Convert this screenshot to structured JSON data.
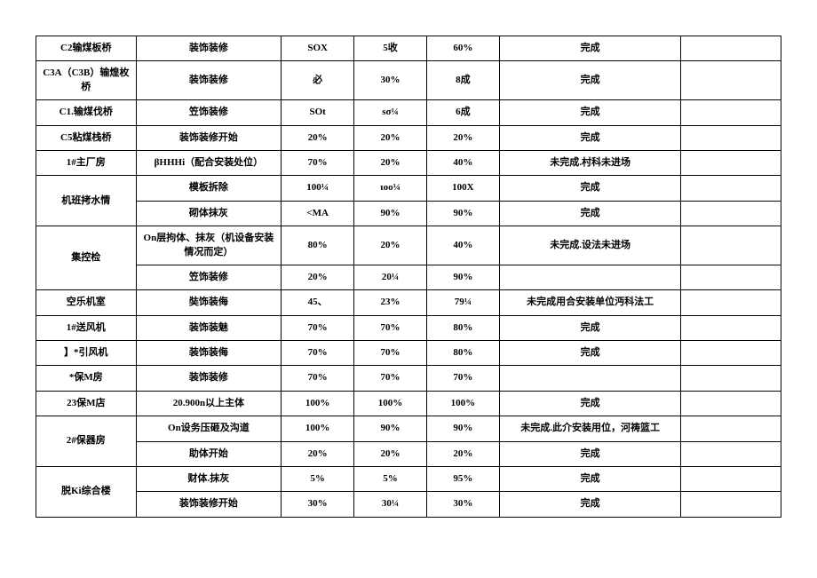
{
  "rows": [
    {
      "c0": "C2输煤板桥",
      "c1": "装饰装修",
      "c2": "SOX",
      "c3": "5收",
      "c4": "60%",
      "c5": "完成",
      "c6": ""
    },
    {
      "c0": "C3A（C3B）输煌枚桥",
      "c1": "装饰装修",
      "c2": "必",
      "c3": "30%",
      "c4": "8成",
      "c5": "完成",
      "c6": ""
    },
    {
      "c0": "C1.输煤伐桥",
      "c1": "笠饰装修",
      "c2": "SOt",
      "c3": "sσ¼",
      "c4": "6成",
      "c5": "完成",
      "c6": ""
    },
    {
      "c0": "C5粘煤栈桥",
      "c1": "装饰装修开始",
      "c2": "20%",
      "c3": "20%",
      "c4": "20%",
      "c5": "完成",
      "c6": ""
    },
    {
      "c0": "1#主厂房",
      "c1": "βHHHi（配合安装处位）",
      "c2": "70%",
      "c3": "20%",
      "c4": "40%",
      "c5": "未完成.村科未进场",
      "c6": ""
    },
    {
      "c0span": 2,
      "c0": "机班拷水情",
      "c1": "模板拆除",
      "c2": "100¼",
      "c3": "ιoo¼",
      "c4": "100X",
      "c5": "完成",
      "c6": ""
    },
    {
      "c1": "砌体抹灰",
      "c2": "<MA",
      "c3": "90%",
      "c4": "90%",
      "c5": "完成",
      "c6": ""
    },
    {
      "c0span": 2,
      "c0": "集控检",
      "c1": "On层拘体、抹灰（机设备安装情况而定）",
      "c2": "80%",
      "c3": "20%",
      "c4": "40%",
      "c5": "未完成.设法未进场",
      "c6": ""
    },
    {
      "c1": "笠饰装修",
      "c2": "20%",
      "c3": "20¼",
      "c4": "90%",
      "c5": "",
      "c6": ""
    },
    {
      "c0": "空乐机室",
      "c1": "奘饰装侮",
      "c2": "45、",
      "c3": "23%",
      "c4": "79¼",
      "c5": "未完成用合安装单位沔科法工",
      "c6": ""
    },
    {
      "c0": "1#送风机",
      "c1": "装饰装魅",
      "c2": "70%",
      "c3": "70%",
      "c4": "80%",
      "c5": "完成",
      "c6": ""
    },
    {
      "c0": "】*引风机",
      "c1": "装饰装侮",
      "c2": "70%",
      "c3": "70%",
      "c4": "80%",
      "c5": "完成",
      "c6": ""
    },
    {
      "c0": "*保M房",
      "c1": "装饰装修",
      "c2": "70%",
      "c3": "70%",
      "c4": "70%",
      "c5": "",
      "c6": ""
    },
    {
      "c0": "23保M店",
      "c1": "20.900n以上主体",
      "c2": "100%",
      "c3": "100%",
      "c4": "100%",
      "c5": "完成",
      "c6": ""
    },
    {
      "c0span": 2,
      "c0": "2#保器房",
      "c1": "On设务压砸及沟道",
      "c2": "100%",
      "c3": "90%",
      "c4": "90%",
      "c5": "未完成.此介安装用位，河祷篮工",
      "c6": ""
    },
    {
      "c1": "助体开始",
      "c2": "20%",
      "c3": "20%",
      "c4": "20%",
      "c5": "完成",
      "c6": ""
    },
    {
      "c0span": 2,
      "c0": "脱Ki综合楼",
      "c1": "财体.抹灰",
      "c2": "5%",
      "c3": "5%",
      "c4": "95%",
      "c5": "完成",
      "c6": ""
    },
    {
      "c1": "装饰装修开始",
      "c2": "30%",
      "c3": "30¼",
      "c4": "30%",
      "c5": "完成",
      "c6": ""
    }
  ],
  "style": {
    "border_color": "#000000",
    "font_size": 11,
    "font_weight": "bold",
    "background": "#ffffff",
    "col_widths_pct": [
      11,
      16,
      8,
      8,
      8,
      20,
      11
    ]
  }
}
